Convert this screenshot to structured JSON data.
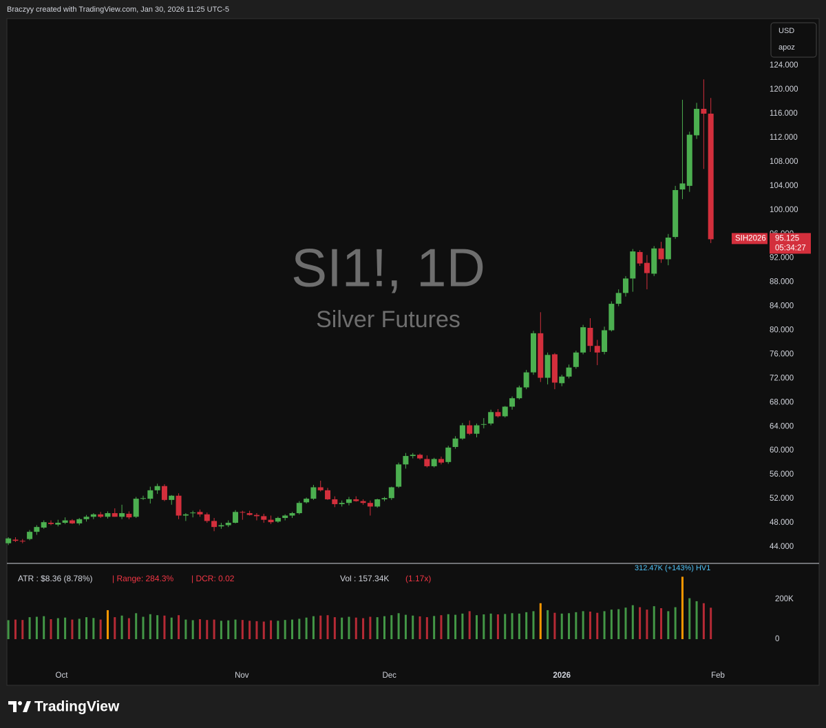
{
  "header": {
    "credit": "Braczyy created with TradingView.com, Jan 30, 2026 11:25 UTC-5"
  },
  "chart_data": {
    "type": "candlestick",
    "title": "SI1!, 1D",
    "subtitle": "Silver Futures",
    "currency": "USD",
    "scale_label": "apoz",
    "symbol_tag": "SIH2026",
    "countdown": "05:34:27",
    "up_color": "#4caf50",
    "down_color": "#d32f3c",
    "open": [
      44.6,
      45.2,
      45.0,
      45.3,
      46.5,
      47.2,
      48.0,
      47.7,
      48.0,
      48.4,
      47.9,
      48.6,
      49.0,
      49.4,
      49.0,
      49.6,
      49.0,
      49.5,
      49.0,
      52.0,
      52.0,
      53.4,
      54.1,
      51.8,
      52.5,
      49.2,
      49.6,
      49.8,
      49.4,
      48.3,
      47.4,
      47.6,
      48.0,
      49.8,
      49.6,
      49.3,
      49.1,
      48.5,
      48.2,
      48.8,
      49.2,
      49.6,
      51.4,
      52.0,
      53.9,
      53.4,
      51.9,
      51.1,
      51.3,
      51.9,
      51.6,
      51.3,
      50.7,
      51.9,
      52.1,
      54.0,
      57.7,
      59.1,
      59.3,
      58.6,
      57.4,
      58.6,
      58.1,
      60.6,
      62.0,
      64.2,
      62.8,
      64.3,
      64.5,
      66.4,
      65.7,
      67.3,
      68.7,
      70.5,
      73.0,
      79.5,
      72.1,
      76.0,
      71.2,
      72.3,
      73.9,
      76.3,
      80.4,
      77.4,
      76.4,
      80.0,
      84.4,
      86.2,
      88.6,
      93.0,
      91.2,
      89.4,
      93.6,
      91.8,
      95.5,
      103.4,
      104.0,
      112.4,
      116.8,
      116.0
    ],
    "high": [
      45.6,
      45.6,
      45.3,
      46.8,
      47.6,
      48.4,
      48.4,
      48.5,
      48.9,
      48.6,
      48.8,
      49.3,
      49.6,
      49.8,
      49.9,
      50.4,
      51.0,
      49.9,
      52.3,
      52.5,
      54.0,
      54.5,
      54.4,
      52.6,
      52.9,
      49.6,
      50.0,
      50.2,
      49.7,
      48.8,
      48.0,
      48.4,
      50.1,
      50.0,
      50.0,
      49.6,
      49.5,
      49.2,
      49.0,
      49.4,
      49.8,
      51.6,
      52.2,
      54.3,
      55.0,
      53.8,
      52.4,
      51.7,
      52.3,
      52.4,
      51.9,
      51.7,
      52.0,
      52.3,
      54.0,
      58.0,
      59.6,
      59.6,
      59.5,
      59.2,
      58.8,
      59.0,
      60.8,
      62.4,
      64.6,
      65.0,
      64.5,
      65.4,
      66.8,
      66.9,
      67.4,
      69.0,
      70.8,
      73.4,
      79.9,
      83.0,
      76.3,
      76.2,
      72.6,
      74.3,
      76.6,
      80.9,
      82.0,
      78.4,
      80.6,
      84.8,
      86.8,
      89.0,
      93.5,
      93.3,
      92.5,
      94.0,
      94.7,
      96.0,
      104.0,
      118.3,
      113.0,
      117.8,
      121.7,
      118.6
    ],
    "low": [
      44.3,
      44.8,
      44.6,
      45.1,
      46.0,
      47.0,
      47.6,
      47.4,
      47.8,
      47.8,
      47.6,
      48.2,
      48.6,
      48.8,
      48.7,
      49.0,
      48.6,
      48.6,
      48.8,
      51.8,
      51.2,
      52.8,
      51.6,
      51.0,
      48.6,
      48.3,
      48.9,
      49.0,
      48.0,
      46.6,
      47.0,
      47.3,
      47.9,
      48.5,
      49.2,
      48.4,
      48.0,
      47.8,
      48.0,
      48.4,
      48.8,
      49.4,
      51.2,
      51.8,
      53.2,
      51.8,
      50.6,
      50.7,
      50.9,
      51.5,
      51.0,
      49.2,
      50.5,
      51.6,
      51.8,
      53.8,
      57.0,
      58.7,
      58.5,
      57.2,
      57.2,
      57.7,
      57.8,
      60.3,
      61.8,
      62.6,
      62.2,
      63.7,
      64.2,
      65.5,
      65.5,
      66.8,
      68.5,
      70.2,
      72.6,
      71.4,
      71.0,
      70.2,
      70.7,
      72.0,
      73.6,
      76.0,
      76.4,
      74.2,
      76.0,
      79.8,
      84.0,
      85.6,
      86.4,
      90.7,
      86.8,
      89.0,
      91.2,
      90.8,
      95.2,
      101.8,
      103.0,
      111.8,
      106.8,
      94.5
    ],
    "close": [
      45.4,
      45.0,
      44.9,
      46.5,
      47.3,
      48.1,
      47.8,
      48.0,
      48.4,
      47.9,
      48.6,
      49.0,
      49.4,
      49.0,
      49.6,
      49.0,
      49.6,
      48.9,
      52.0,
      52.1,
      53.4,
      54.1,
      51.8,
      52.5,
      49.2,
      49.4,
      49.7,
      49.4,
      48.3,
      47.3,
      47.6,
      48.0,
      49.8,
      49.7,
      49.3,
      49.1,
      48.5,
      48.1,
      48.8,
      49.2,
      49.6,
      51.3,
      52.0,
      53.9,
      53.4,
      51.9,
      51.1,
      51.3,
      51.9,
      51.6,
      51.3,
      50.7,
      51.9,
      52.1,
      53.9,
      57.7,
      59.1,
      59.3,
      58.7,
      57.4,
      58.6,
      58.0,
      60.5,
      62.0,
      64.2,
      62.8,
      64.2,
      64.4,
      66.4,
      65.7,
      67.3,
      68.7,
      70.5,
      73.0,
      79.5,
      72.1,
      75.9,
      71.3,
      72.3,
      73.8,
      76.3,
      80.5,
      77.4,
      76.3,
      80.0,
      84.4,
      86.2,
      88.6,
      93.1,
      91.1,
      89.5,
      93.6,
      91.8,
      95.4,
      103.3,
      104.4,
      112.5,
      116.8,
      116.0,
      95.125
    ],
    "xlim": [
      -0.5,
      106.5
    ],
    "xticks": [
      {
        "value": 7.5,
        "label": "Oct"
      },
      {
        "value": 32.9,
        "label": "Nov"
      },
      {
        "value": 53.7,
        "label": "Dec"
      },
      {
        "value": 78,
        "label": "2026"
      },
      {
        "value": 100,
        "label": "Feb"
      }
    ],
    "ylim": [
      41.25,
      131.8
    ],
    "yticks": [
      {
        "value": 44,
        "label": "44.000"
      },
      {
        "value": 48,
        "label": "48.000"
      },
      {
        "value": 52,
        "label": "52.000"
      },
      {
        "value": 56,
        "label": "56.000"
      },
      {
        "value": 60,
        "label": "60.000"
      },
      {
        "value": 64,
        "label": "64.000"
      },
      {
        "value": 68,
        "label": "68.000"
      },
      {
        "value": 72,
        "label": "72.000"
      },
      {
        "value": 76,
        "label": "76.000"
      },
      {
        "value": 80,
        "label": "80.000"
      },
      {
        "value": 84,
        "label": "84.000"
      },
      {
        "value": 88,
        "label": "88.000"
      },
      {
        "value": 92,
        "label": "92.000"
      },
      {
        "value": 96,
        "label": "96.000"
      },
      {
        "value": 100,
        "label": "100.000"
      },
      {
        "value": 104,
        "label": "104.000"
      },
      {
        "value": 108,
        "label": "108.000"
      },
      {
        "value": 112,
        "label": "112.000"
      },
      {
        "value": 116,
        "label": "116.000"
      },
      {
        "value": 120,
        "label": "120.000"
      },
      {
        "value": 124,
        "label": "124.000"
      }
    ],
    "indicators": {
      "atr": "ATR : $8.36 (8.78%)",
      "range": "| Range: 284.3%",
      "dcr": "| DCR: 0.02",
      "vol": "Vol : 157.34K",
      "vol_ratio": "(1.17x)"
    },
    "volume": {
      "values": [
        95000,
        98000,
        96000,
        110000,
        112000,
        115000,
        100000,
        105000,
        108000,
        98000,
        102000,
        110000,
        106000,
        98000,
        145000,
        110000,
        118000,
        105000,
        130000,
        112000,
        125000,
        120000,
        118000,
        108000,
        120000,
        98000,
        95000,
        100000,
        96000,
        98000,
        92000,
        94000,
        98000,
        96000,
        92000,
        90000,
        88000,
        94000,
        92000,
        96000,
        98000,
        102000,
        108000,
        115000,
        118000,
        120000,
        110000,
        108000,
        112000,
        108000,
        105000,
        112000,
        110000,
        115000,
        120000,
        130000,
        122000,
        118000,
        114000,
        110000,
        116000,
        120000,
        125000,
        122000,
        128000,
        140000,
        120000,
        124000,
        128000,
        124000,
        126000,
        130000,
        128000,
        135000,
        140000,
        180000,
        145000,
        132000,
        128000,
        130000,
        135000,
        140000,
        138000,
        132000,
        140000,
        148000,
        150000,
        158000,
        170000,
        160000,
        148000,
        165000,
        155000,
        140000,
        160000,
        312470,
        205000,
        190000,
        180000,
        157340
      ],
      "highlight_indices": [
        14,
        75,
        95
      ],
      "highlight_color": "#ff9800",
      "hv_label": "312.47K (+143%) HV1",
      "ylim": [
        -127586,
        379310
      ],
      "yticks": [
        0,
        {
          "value": 200000,
          "label": "200K"
        }
      ]
    }
  },
  "footer": {
    "brand": "TradingView"
  }
}
